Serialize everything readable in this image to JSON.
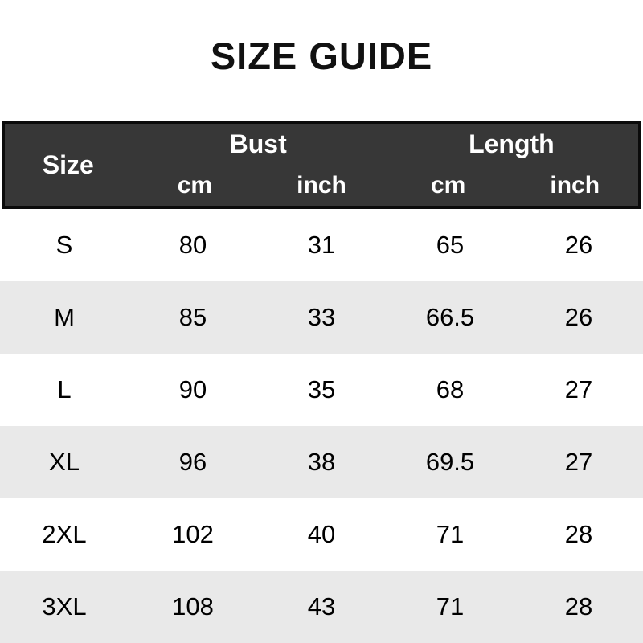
{
  "title": "SIZE GUIDE",
  "table": {
    "size_header": "Size",
    "groups": [
      {
        "label": "Bust"
      },
      {
        "label": "Length"
      }
    ],
    "subheaders": [
      "cm",
      "inch",
      "cm",
      "inch"
    ],
    "rows": [
      {
        "size": "S",
        "bust_cm": "80",
        "bust_inch": "31",
        "length_cm": "65",
        "length_inch": "26"
      },
      {
        "size": "M",
        "bust_cm": "85",
        "bust_inch": "33",
        "length_cm": "66.5",
        "length_inch": "26"
      },
      {
        "size": "L",
        "bust_cm": "90",
        "bust_inch": "35",
        "length_cm": "68",
        "length_inch": "27"
      },
      {
        "size": "XL",
        "bust_cm": "96",
        "bust_inch": "38",
        "length_cm": "69.5",
        "length_inch": "27"
      },
      {
        "size": "2XL",
        "bust_cm": "102",
        "bust_inch": "40",
        "length_cm": "71",
        "length_inch": "28"
      },
      {
        "size": "3XL",
        "bust_cm": "108",
        "bust_inch": "43",
        "length_cm": "71",
        "length_inch": "28"
      }
    ]
  },
  "colors": {
    "header_bg": "#373737",
    "header_border": "#0b0b0b",
    "header_text": "#ffffff",
    "row_alt_bg": "#e9e9e9",
    "body_text": "#000000",
    "page_bg": "#ffffff"
  }
}
